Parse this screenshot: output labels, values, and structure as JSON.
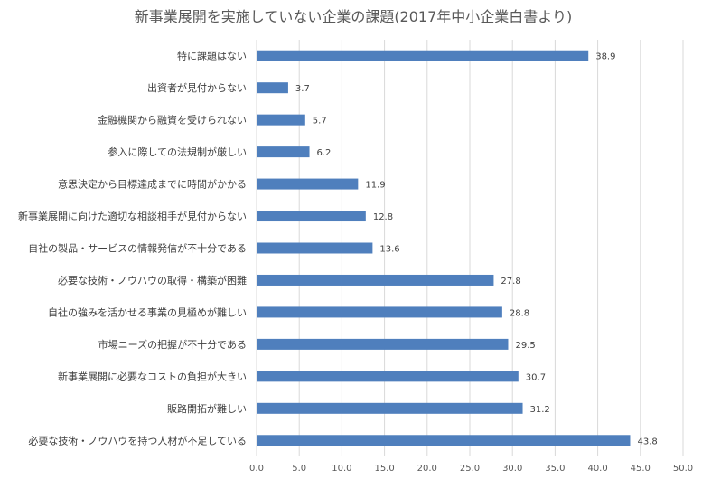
{
  "chart_data": {
    "type": "bar",
    "orientation": "horizontal",
    "title": "新事業展開を実施していない企業の課題(2017年中小企業白書より)",
    "xlabel": "",
    "ylabel": "",
    "xlim": [
      0,
      50
    ],
    "xticks": [
      "0.0",
      "5.0",
      "10.0",
      "15.0",
      "20.0",
      "25.0",
      "30.0",
      "35.0",
      "40.0",
      "45.0",
      "50.0"
    ],
    "grid": true,
    "bar_color": "#4f7fbd",
    "categories": [
      "特に課題はない",
      "出資者が見付からない",
      "金融機関から融資を受けられない",
      "参入に際しての法規制が厳しい",
      "意思決定から目標達成までに時間がかかる",
      "新事業展開に向けた適切な相談相手が見付からない",
      "自社の製品・サービスの情報発信が不十分である",
      "必要な技術・ノウハウの取得・構築が困難",
      "自社の強みを活かせる事業の見極めが難しい",
      "市場ニーズの把握が不十分である",
      "新事業展開に必要なコストの負担が大きい",
      "販路開拓が難しい",
      "必要な技術・ノウハウを持つ人材が不足している"
    ],
    "values": [
      38.9,
      3.7,
      5.7,
      6.2,
      11.9,
      12.8,
      13.6,
      27.8,
      28.8,
      29.5,
      30.7,
      31.2,
      43.8
    ],
    "value_labels": [
      "38.9",
      "3.7",
      "5.7",
      "6.2",
      "11.9",
      "12.8",
      "13.6",
      "27.8",
      "28.8",
      "29.5",
      "30.7",
      "31.2",
      "43.8"
    ]
  }
}
